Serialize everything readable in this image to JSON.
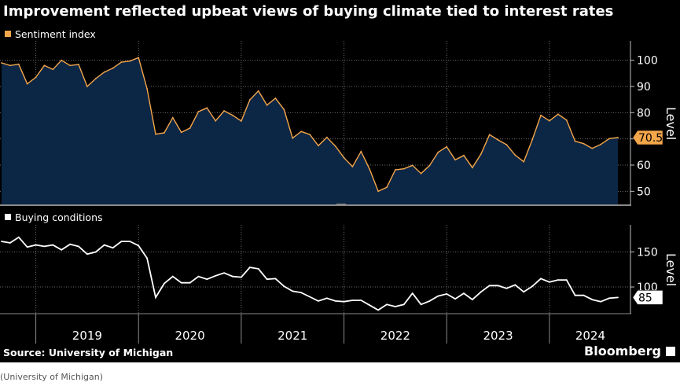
{
  "title": "Improvement reflected upbeat views of buying climate tied to interest rates",
  "source": "Source: University of Michigan",
  "brand": "Bloomberg",
  "caption": "(University of Michigan)",
  "colors": {
    "sentiment": "#f4a64a",
    "sentiment_fill": "#0c2645",
    "buying": "#ffffff",
    "background": "#000000"
  },
  "chart_data": [
    {
      "type": "area",
      "legend": "Sentiment index",
      "ylabel": "Level",
      "y_ticks": [
        50,
        60,
        70,
        80,
        90,
        100
      ],
      "ylim": [
        45,
        105
      ],
      "last_value_label": "70.5",
      "series": [
        {
          "name": "Sentiment index",
          "x": [
            "2018-09",
            "2018-10",
            "2018-11",
            "2018-12",
            "2019-01",
            "2019-02",
            "2019-03",
            "2019-04",
            "2019-05",
            "2019-06",
            "2019-07",
            "2019-08",
            "2019-09",
            "2019-10",
            "2019-11",
            "2019-12",
            "2020-01",
            "2020-02",
            "2020-03",
            "2020-04",
            "2020-05",
            "2020-06",
            "2020-07",
            "2020-08",
            "2020-09",
            "2020-10",
            "2020-11",
            "2020-12",
            "2021-01",
            "2021-02",
            "2021-03",
            "2021-04",
            "2021-05",
            "2021-06",
            "2021-07",
            "2021-08",
            "2021-09",
            "2021-10",
            "2021-11",
            "2021-12",
            "2022-01",
            "2022-02",
            "2022-03",
            "2022-04",
            "2022-05",
            "2022-06",
            "2022-07",
            "2022-08",
            "2022-09",
            "2022-10",
            "2022-11",
            "2022-12",
            "2023-01",
            "2023-02",
            "2023-03",
            "2023-04",
            "2023-05",
            "2023-06",
            "2023-07",
            "2023-08",
            "2023-09",
            "2023-10",
            "2023-11",
            "2023-12",
            "2024-01",
            "2024-02",
            "2024-03",
            "2024-04",
            "2024-05",
            "2024-06",
            "2024-07",
            "2024-08",
            "2024-09"
          ],
          "values": [
            99.0,
            98.0,
            98.5,
            91.0,
            93.5,
            98.0,
            96.5,
            100.0,
            98.0,
            98.4,
            90.0,
            93.0,
            95.5,
            97.0,
            99.3,
            99.7,
            101.0,
            89.1,
            71.8,
            72.3,
            78.1,
            72.5,
            74.1,
            80.4,
            81.8,
            76.9,
            80.7,
            79.0,
            76.8,
            84.9,
            88.3,
            82.9,
            85.5,
            81.2,
            70.3,
            72.8,
            71.7,
            67.4,
            70.6,
            67.2,
            62.8,
            59.4,
            65.2,
            58.4,
            50.0,
            51.5,
            58.2,
            58.6,
            59.9,
            56.8,
            59.8,
            64.9,
            67.0,
            62.0,
            63.7,
            59.0,
            64.2,
            71.6,
            69.6,
            67.8,
            63.8,
            61.3,
            69.7,
            79.0,
            76.9,
            79.4,
            77.2,
            69.1,
            68.2,
            66.4,
            67.9,
            70.1,
            70.5
          ]
        }
      ]
    },
    {
      "type": "line",
      "legend": "Buying conditions",
      "ylabel": "Level",
      "y_ticks": [
        100,
        150
      ],
      "ylim": [
        63,
        182
      ],
      "last_value_label": "85",
      "x_tick_labels": [
        "2019",
        "2020",
        "2021",
        "2022",
        "2023",
        "2024"
      ],
      "series": [
        {
          "name": "Buying conditions",
          "x": [
            "2018-09",
            "2018-10",
            "2018-11",
            "2018-12",
            "2019-01",
            "2019-02",
            "2019-03",
            "2019-04",
            "2019-05",
            "2019-06",
            "2019-07",
            "2019-08",
            "2019-09",
            "2019-10",
            "2019-11",
            "2019-12",
            "2020-01",
            "2020-02",
            "2020-03",
            "2020-04",
            "2020-05",
            "2020-06",
            "2020-07",
            "2020-08",
            "2020-09",
            "2020-10",
            "2020-11",
            "2020-12",
            "2021-01",
            "2021-02",
            "2021-03",
            "2021-04",
            "2021-05",
            "2021-06",
            "2021-07",
            "2021-08",
            "2021-09",
            "2021-10",
            "2021-11",
            "2021-12",
            "2022-01",
            "2022-02",
            "2022-03",
            "2022-04",
            "2022-05",
            "2022-06",
            "2022-07",
            "2022-08",
            "2022-09",
            "2022-10",
            "2022-11",
            "2022-12",
            "2023-01",
            "2023-02",
            "2023-03",
            "2023-04",
            "2023-05",
            "2023-06",
            "2023-07",
            "2023-08",
            "2023-09",
            "2023-10",
            "2023-11",
            "2023-12",
            "2024-01",
            "2024-02",
            "2024-03",
            "2024-04",
            "2024-05",
            "2024-06",
            "2024-07",
            "2024-08",
            "2024-09"
          ],
          "values": [
            165,
            163,
            171,
            157,
            160,
            158,
            160,
            153,
            161,
            158,
            147,
            150,
            160,
            156,
            165,
            165,
            159,
            141,
            85,
            105,
            115,
            106,
            106,
            115,
            111,
            116,
            120,
            115,
            114,
            128,
            126,
            111,
            112,
            101,
            94,
            92,
            86,
            80,
            84,
            80,
            79,
            81,
            81,
            74,
            67,
            75,
            72,
            75,
            91,
            75,
            80,
            87,
            90,
            83,
            91,
            82,
            93,
            102,
            102,
            98,
            103,
            93,
            101,
            112,
            107,
            110,
            110,
            88,
            88,
            82,
            79,
            84,
            85
          ]
        }
      ]
    }
  ]
}
